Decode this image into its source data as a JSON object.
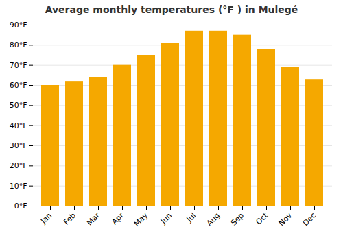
{
  "chart_data": {
    "type": "bar",
    "title": "Average monthly temperatures (°F ) in Mulegé",
    "categories": [
      "Jan",
      "Feb",
      "Mar",
      "Apr",
      "May",
      "Jun",
      "Jul",
      "Aug",
      "Sep",
      "Oct",
      "Nov",
      "Dec"
    ],
    "values": [
      60,
      62,
      64,
      70,
      75,
      81,
      87,
      87,
      85,
      78,
      69,
      63
    ],
    "color": "#F5A800",
    "ylim": [
      0,
      90
    ],
    "yticks": [
      {
        "value": 0,
        "label": "0°F"
      },
      {
        "value": 10,
        "label": "10°F"
      },
      {
        "value": 20,
        "label": "20°F"
      },
      {
        "value": 30,
        "label": "30°F"
      },
      {
        "value": 40,
        "label": "40°F"
      },
      {
        "value": 50,
        "label": "50°F"
      },
      {
        "value": 60,
        "label": "60°F"
      },
      {
        "value": 70,
        "label": "70°F"
      },
      {
        "value": 80,
        "label": "80°F"
      },
      {
        "value": 90,
        "label": "90°F"
      }
    ],
    "grid": true
  }
}
